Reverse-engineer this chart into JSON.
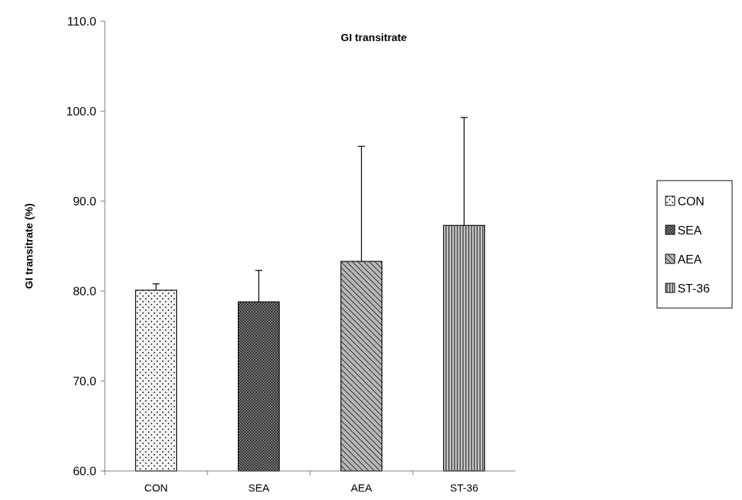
{
  "chart_data": {
    "type": "bar",
    "title": "GI transitrate",
    "ylabel": "GI transitrate (%)",
    "categories": [
      "CON",
      "SEA",
      "AEA",
      "ST-36"
    ],
    "series": [
      {
        "name": "CON",
        "color": "#f4f4f4",
        "values": [
          80.1,
          null,
          null,
          null
        ],
        "errors": [
          [
            80.1,
            80.8
          ],
          null,
          null,
          null
        ]
      },
      {
        "name": "SEA",
        "color": "#7a7a7a",
        "values": [
          null,
          78.8,
          null,
          null
        ],
        "errors": [
          null,
          [
            78.8,
            82.3
          ],
          null,
          null
        ]
      },
      {
        "name": "AEA",
        "color": "#b4b4b4",
        "values": [
          null,
          null,
          83.3,
          null
        ],
        "errors": [
          null,
          null,
          [
            83.3,
            96.1
          ],
          null
        ]
      },
      {
        "name": "ST-36",
        "color": "#c8c8c8",
        "values": [
          null,
          null,
          null,
          87.3
        ],
        "errors": [
          null,
          null,
          null,
          [
            87.3,
            99.3
          ]
        ]
      }
    ],
    "ylim": [
      60,
      110
    ],
    "yticks": [
      {
        "value": 60,
        "label": "60.0"
      },
      {
        "value": 70,
        "label": "70.0"
      },
      {
        "value": 80,
        "label": "80.0"
      },
      {
        "value": 90,
        "label": "90.0"
      },
      {
        "value": 100,
        "label": "100.0"
      },
      {
        "value": 110,
        "label": "110.0"
      }
    ],
    "legend": "right"
  }
}
